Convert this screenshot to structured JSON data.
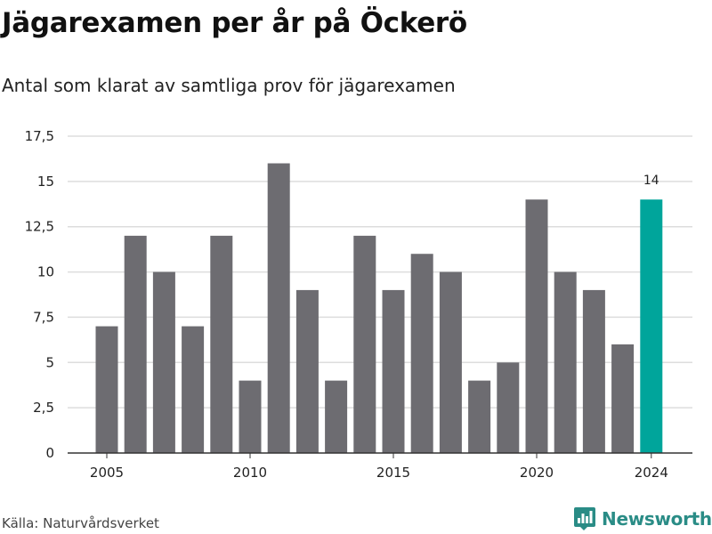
{
  "title": "Jägarexamen per år på Öckerö",
  "subtitle": "Antal som klarat av samtliga prov för jägarexamen",
  "source": "Källa: Naturvårdsverket",
  "brand": {
    "name": "Newsworthy",
    "icon": "bar-chart-logo-icon",
    "color": "#2a8c86"
  },
  "colors": {
    "bar": "#6d6c71",
    "highlight": "#00a59b",
    "grid": "#dddddd",
    "axis": "#333333"
  },
  "chart_data": {
    "type": "bar",
    "categories": [
      "2005",
      "2006",
      "2007",
      "2008",
      "2009",
      "2010",
      "2011",
      "2012",
      "2013",
      "2014",
      "2015",
      "2016",
      "2017",
      "2018",
      "2019",
      "2020",
      "2021",
      "2022",
      "2023",
      "2024"
    ],
    "values": [
      7,
      12,
      10,
      7,
      12,
      4,
      16,
      9,
      4,
      12,
      9,
      11,
      10,
      4,
      5,
      14,
      10,
      9,
      6,
      14
    ],
    "title": "Jägarexamen per år på Öckerö",
    "subtitle": "Antal som klarat av samtliga prov för jägarexamen",
    "ylim": [
      0,
      17.5
    ],
    "yticks": [
      "0",
      "2,5",
      "5",
      "7,5",
      "10",
      "12,5",
      "15",
      "17,5"
    ],
    "ytick_values": [
      0,
      2.5,
      5,
      7.5,
      10,
      12.5,
      15,
      17.5
    ],
    "xticks": [
      "2005",
      "2010",
      "2015",
      "2020",
      "2024"
    ],
    "highlight": {
      "category": "2024",
      "label": "14"
    },
    "grid": true,
    "legend": "none"
  }
}
